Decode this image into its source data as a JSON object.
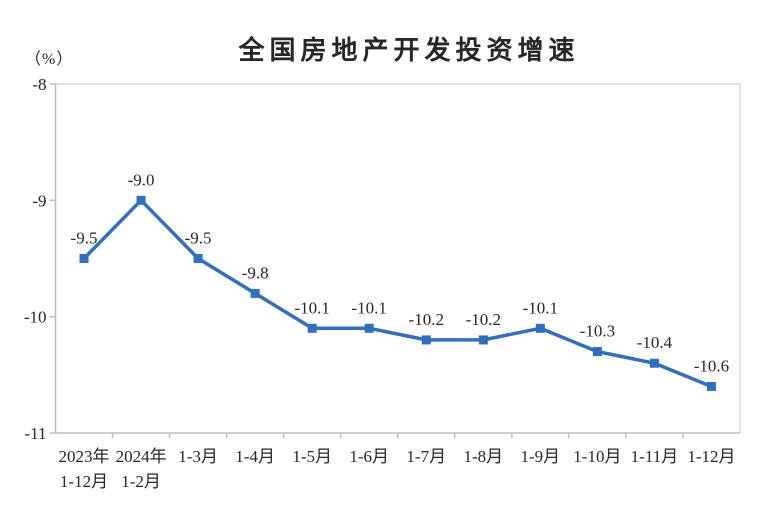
{
  "page": {
    "background_color": "#ffffff"
  },
  "chart_data": {
    "type": "line",
    "title": "全国房地产开发投资增速",
    "unit_label": "（%）",
    "categories": [
      [
        "2023年",
        "1-12月"
      ],
      [
        "2024年",
        "1-2月"
      ],
      [
        "1-3月"
      ],
      [
        "1-4月"
      ],
      [
        "1-5月"
      ],
      [
        "1-6月"
      ],
      [
        "1-7月"
      ],
      [
        "1-8月"
      ],
      [
        "1-9月"
      ],
      [
        "1-10月"
      ],
      [
        "1-11月"
      ],
      [
        "1-12月"
      ]
    ],
    "series": [
      {
        "name": "全国房地产开发投资增速",
        "values": [
          -9.5,
          -9.0,
          -9.5,
          -9.8,
          -10.1,
          -10.1,
          -10.2,
          -10.2,
          -10.1,
          -10.3,
          -10.4,
          -10.6
        ],
        "data_labels": [
          "-9.5",
          "-9.0",
          "-9.5",
          "-9.8",
          "-10.1",
          "-10.1",
          "-10.2",
          "-10.2",
          "-10.1",
          "-10.3",
          "-10.4",
          "-10.6"
        ]
      }
    ],
    "ylim": [
      -11,
      -8
    ],
    "yticks": [
      -8,
      -9,
      -10,
      -11
    ],
    "ytick_labels": [
      "-8",
      "-9",
      "-10",
      "-11"
    ],
    "grid": false,
    "legend_position": "none",
    "marker_shape": "square",
    "colors": {
      "line": "#2e6fc0",
      "marker": "#2e6fc0",
      "data_label": "#262626",
      "axis_text": "#262626",
      "title_text": "#262626",
      "axis_line": "#bdbdbd",
      "plot_border": "#d9d9d9"
    }
  }
}
